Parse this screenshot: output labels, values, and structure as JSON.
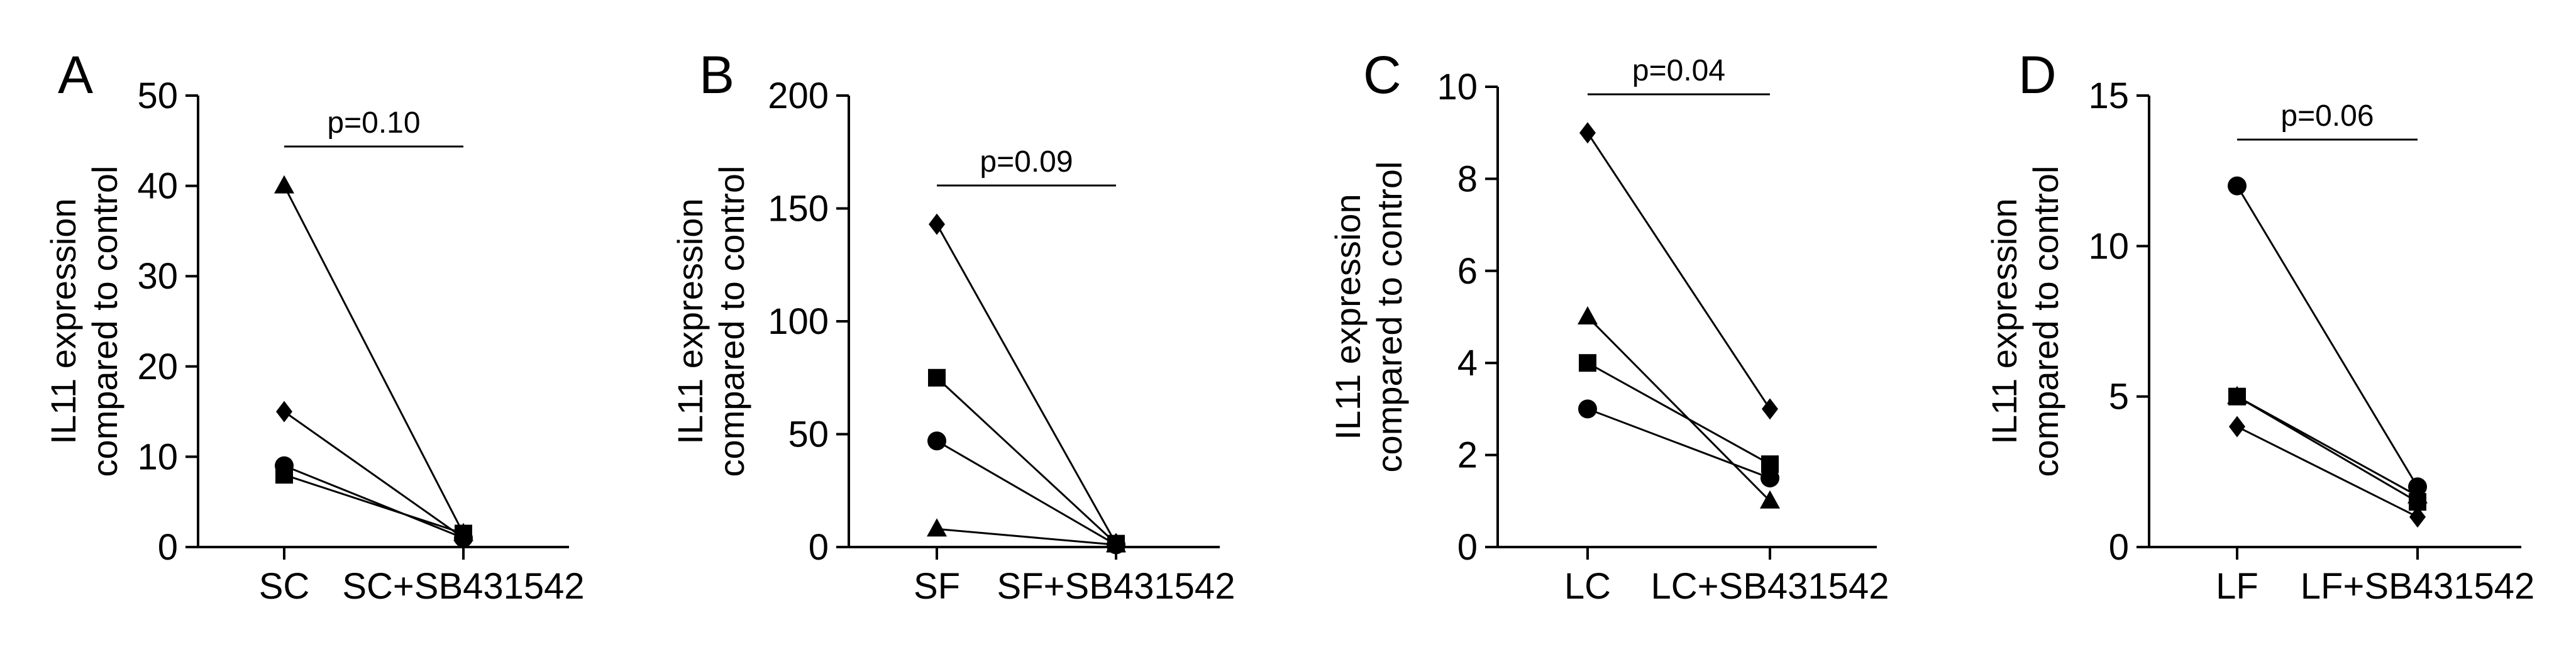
{
  "chart_data": [
    {
      "panel": "A",
      "type": "scatter",
      "categories": [
        "SC",
        "SC+SB431542"
      ],
      "ylabel": [
        "IL11 expression",
        "compared to control"
      ],
      "ylim": [
        0,
        50
      ],
      "yticks": [
        0,
        10,
        20,
        30,
        40,
        50
      ],
      "pvalue": "p=0.10",
      "series": [
        {
          "marker": "triangle",
          "values": [
            40,
            1.5
          ]
        },
        {
          "marker": "diamond",
          "values": [
            15,
            1.0
          ]
        },
        {
          "marker": "circle",
          "values": [
            9,
            1.0
          ]
        },
        {
          "marker": "square",
          "values": [
            8,
            1.5
          ]
        }
      ]
    },
    {
      "panel": "B",
      "type": "scatter",
      "categories": [
        "SF",
        "SF+SB431542"
      ],
      "ylabel": [
        "IL11 expression",
        "compared to control"
      ],
      "ylim": [
        0,
        200
      ],
      "yticks": [
        0,
        50,
        100,
        150,
        200
      ],
      "pvalue": "p=0.09",
      "series": [
        {
          "marker": "diamond",
          "values": [
            143,
            1.5
          ]
        },
        {
          "marker": "square",
          "values": [
            75,
            1.5
          ]
        },
        {
          "marker": "circle",
          "values": [
            47,
            1.0
          ]
        },
        {
          "marker": "triangle",
          "values": [
            8,
            1.0
          ]
        }
      ]
    },
    {
      "panel": "C",
      "type": "scatter",
      "categories": [
        "LC",
        "LC+SB431542"
      ],
      "ylabel": [
        "IL11 expression",
        "compared to control"
      ],
      "ylim": [
        0,
        10
      ],
      "yticks": [
        0,
        2,
        4,
        6,
        8,
        10
      ],
      "pvalue": "p=0.04",
      "series": [
        {
          "marker": "diamond",
          "values": [
            9,
            3
          ]
        },
        {
          "marker": "triangle",
          "values": [
            5,
            1
          ]
        },
        {
          "marker": "square",
          "values": [
            4,
            1.8
          ]
        },
        {
          "marker": "circle",
          "values": [
            3,
            1.5
          ]
        }
      ]
    },
    {
      "panel": "D",
      "type": "scatter",
      "categories": [
        "LF",
        "LF+SB431542"
      ],
      "ylabel": [
        "IL11 expression",
        "compared to control"
      ],
      "ylim": [
        0,
        15
      ],
      "yticks": [
        0,
        5,
        10,
        15
      ],
      "pvalue": "p=0.06",
      "series": [
        {
          "marker": "circle",
          "values": [
            12,
            2
          ]
        },
        {
          "marker": "square",
          "values": [
            5,
            1.5
          ]
        },
        {
          "marker": "triangle",
          "values": [
            5,
            1.7
          ]
        },
        {
          "marker": "diamond",
          "values": [
            4,
            1
          ]
        }
      ]
    }
  ]
}
